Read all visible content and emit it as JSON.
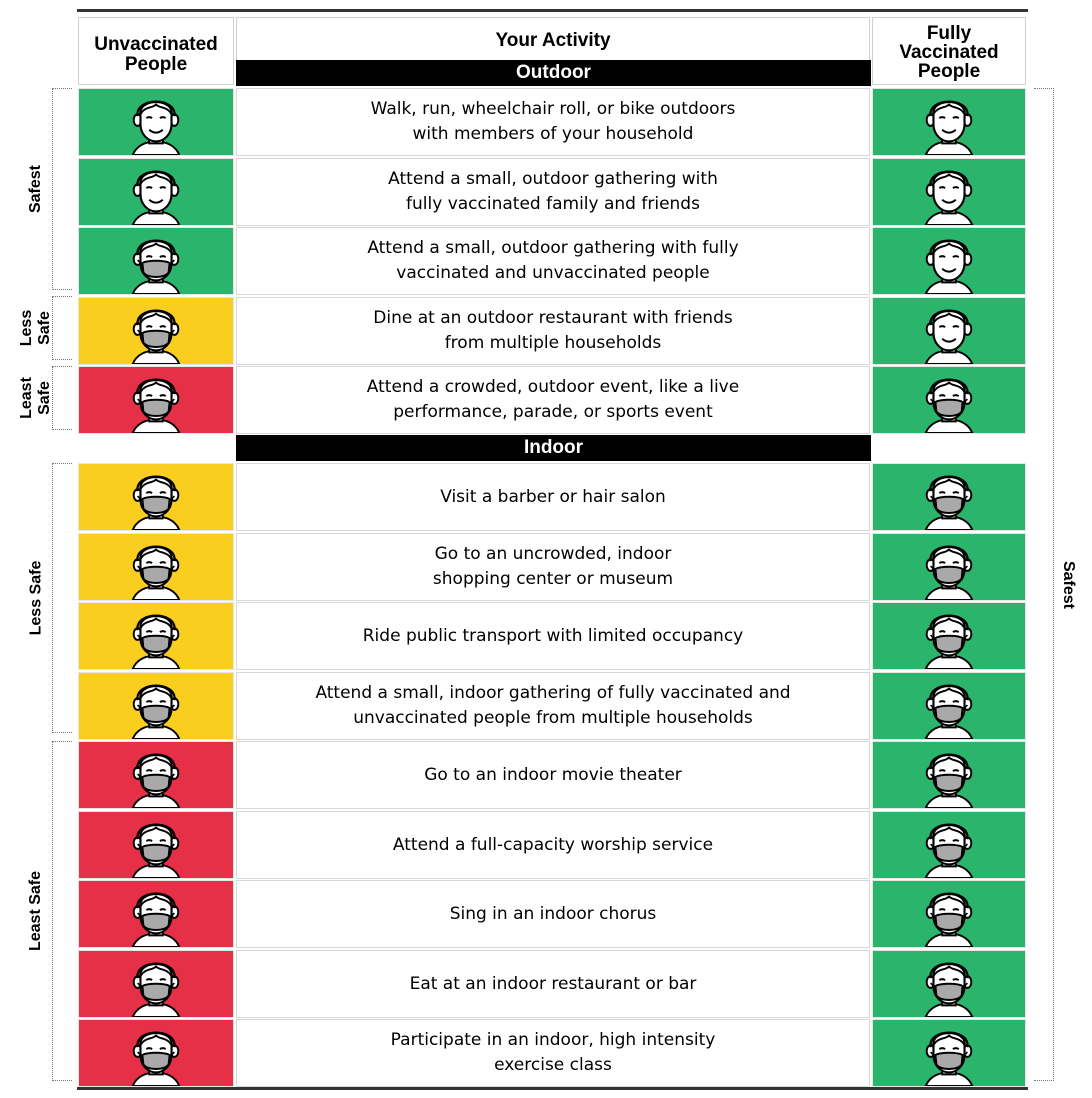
{
  "header": {
    "left": [
      "Unvaccinated",
      "People"
    ],
    "middle": "Your Activity",
    "right": [
      "Fully",
      "Vaccinated",
      "People"
    ]
  },
  "sections": {
    "outdoor": "Outdoor",
    "indoor": "Indoor"
  },
  "colors": {
    "green": "#2bb46b",
    "yellow": "#f9ce1e",
    "red": "#e63047"
  },
  "outdoor_rows": [
    {
      "lines": [
        "Walk, run, wheelchair roll, or bike outdoors",
        "with members of your household"
      ],
      "unvaccinated": {
        "level": "green",
        "mask": false
      },
      "vaccinated": {
        "level": "green",
        "mask": false
      }
    },
    {
      "lines": [
        "Attend a small, outdoor gathering with",
        "fully vaccinated family and friends"
      ],
      "unvaccinated": {
        "level": "green",
        "mask": false
      },
      "vaccinated": {
        "level": "green",
        "mask": false
      }
    },
    {
      "lines": [
        "Attend a small, outdoor gathering with fully",
        "vaccinated and unvaccinated people"
      ],
      "unvaccinated": {
        "level": "green",
        "mask": true
      },
      "vaccinated": {
        "level": "green",
        "mask": false
      }
    },
    {
      "lines": [
        "Dine at an outdoor restaurant with friends",
        "from multiple households"
      ],
      "unvaccinated": {
        "level": "yellow",
        "mask": true
      },
      "vaccinated": {
        "level": "green",
        "mask": false
      }
    },
    {
      "lines": [
        "Attend a crowded, outdoor event, like a live",
        "performance, parade, or sports event"
      ],
      "unvaccinated": {
        "level": "red",
        "mask": true
      },
      "vaccinated": {
        "level": "green",
        "mask": true
      }
    }
  ],
  "indoor_rows": [
    {
      "lines": [
        "Visit a barber or hair salon"
      ],
      "unvaccinated": {
        "level": "yellow",
        "mask": true
      },
      "vaccinated": {
        "level": "green",
        "mask": true
      }
    },
    {
      "lines": [
        "Go to an uncrowded, indoor",
        "shopping center or museum"
      ],
      "unvaccinated": {
        "level": "yellow",
        "mask": true
      },
      "vaccinated": {
        "level": "green",
        "mask": true
      }
    },
    {
      "lines": [
        "Ride public transport with limited occupancy"
      ],
      "unvaccinated": {
        "level": "yellow",
        "mask": true
      },
      "vaccinated": {
        "level": "green",
        "mask": true
      }
    },
    {
      "lines": [
        "Attend a small, indoor gathering of fully vaccinated and",
        "unvaccinated people from multiple households"
      ],
      "unvaccinated": {
        "level": "yellow",
        "mask": true
      },
      "vaccinated": {
        "level": "green",
        "mask": true
      }
    },
    {
      "lines": [
        "Go to an indoor movie theater"
      ],
      "unvaccinated": {
        "level": "red",
        "mask": true
      },
      "vaccinated": {
        "level": "green",
        "mask": true
      }
    },
    {
      "lines": [
        "Attend a full-capacity worship service"
      ],
      "unvaccinated": {
        "level": "red",
        "mask": true
      },
      "vaccinated": {
        "level": "green",
        "mask": true
      }
    },
    {
      "lines": [
        "Sing in an indoor chorus"
      ],
      "unvaccinated": {
        "level": "red",
        "mask": true
      },
      "vaccinated": {
        "level": "green",
        "mask": true
      }
    },
    {
      "lines": [
        "Eat at an indoor restaurant or bar"
      ],
      "unvaccinated": {
        "level": "red",
        "mask": true
      },
      "vaccinated": {
        "level": "green",
        "mask": true
      }
    },
    {
      "lines": [
        "Participate in an indoor, high intensity",
        "exercise class"
      ],
      "unvaccinated": {
        "level": "red",
        "mask": true
      },
      "vaccinated": {
        "level": "green",
        "mask": true
      }
    }
  ],
  "left_labels": {
    "outdoor_safest": "Safest",
    "outdoor_less_safe": [
      "Less",
      "Safe"
    ],
    "outdoor_least_safe": [
      "Least",
      "Safe"
    ],
    "indoor_less_safe": "Less Safe",
    "indoor_least_safe": "Least Safe"
  },
  "right_label": "Safest",
  "icon_names": {
    "face": "smiling-face-icon",
    "masked_face": "masked-face-icon"
  }
}
